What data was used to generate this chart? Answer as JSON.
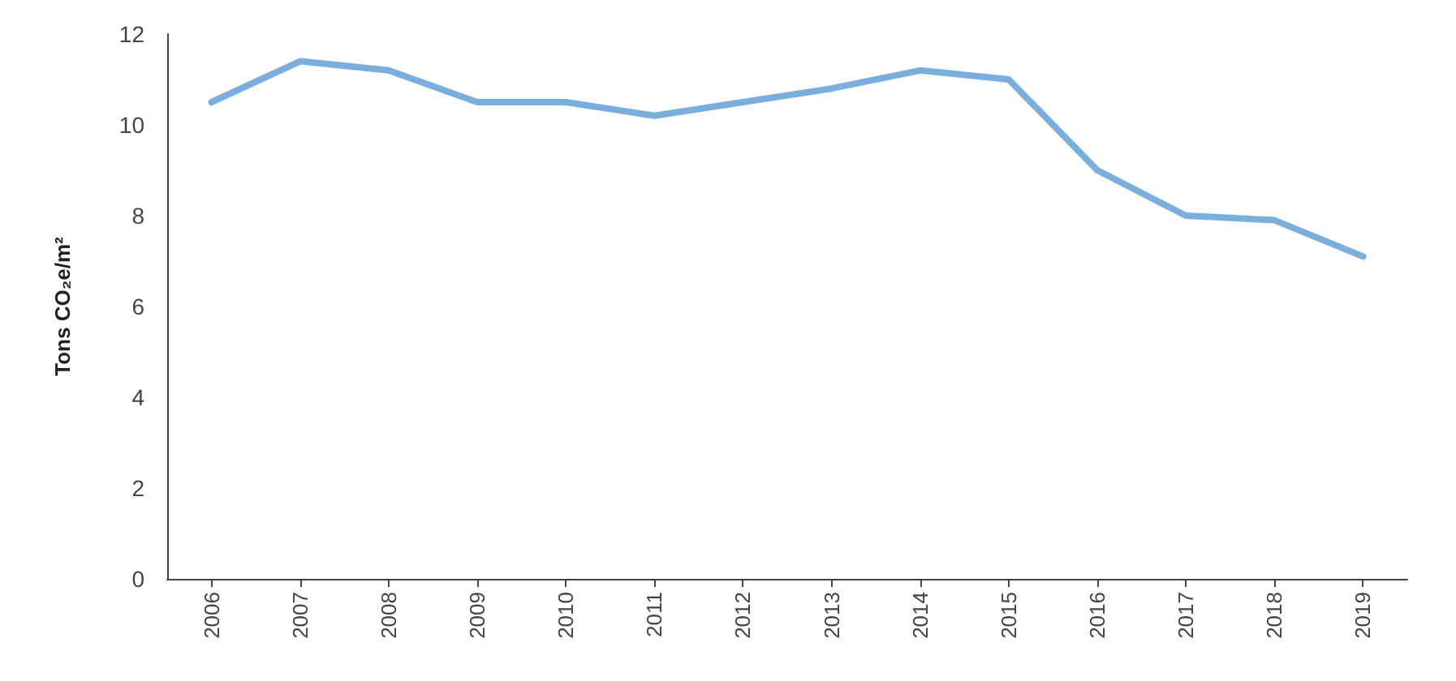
{
  "chart_data": {
    "type": "line",
    "ylabel": "Tons CO₂e/m²",
    "categories": [
      "2006",
      "2007",
      "2008",
      "2009",
      "2010",
      "2011",
      "2012",
      "2013",
      "2014",
      "2015",
      "2016",
      "2017",
      "2018",
      "2019"
    ],
    "series": [
      {
        "color": "#7aaedc",
        "values": [
          10.5,
          11.4,
          11.2,
          10.5,
          10.5,
          10.2,
          10.5,
          10.8,
          11.2,
          11.0,
          9.0,
          8.0,
          7.9,
          7.1
        ]
      }
    ],
    "ylim": [
      0,
      12
    ],
    "yticks": [
      0,
      2,
      4,
      6,
      8,
      10,
      12
    ],
    "grid": false,
    "marker": "none",
    "line_style": "solid"
  }
}
